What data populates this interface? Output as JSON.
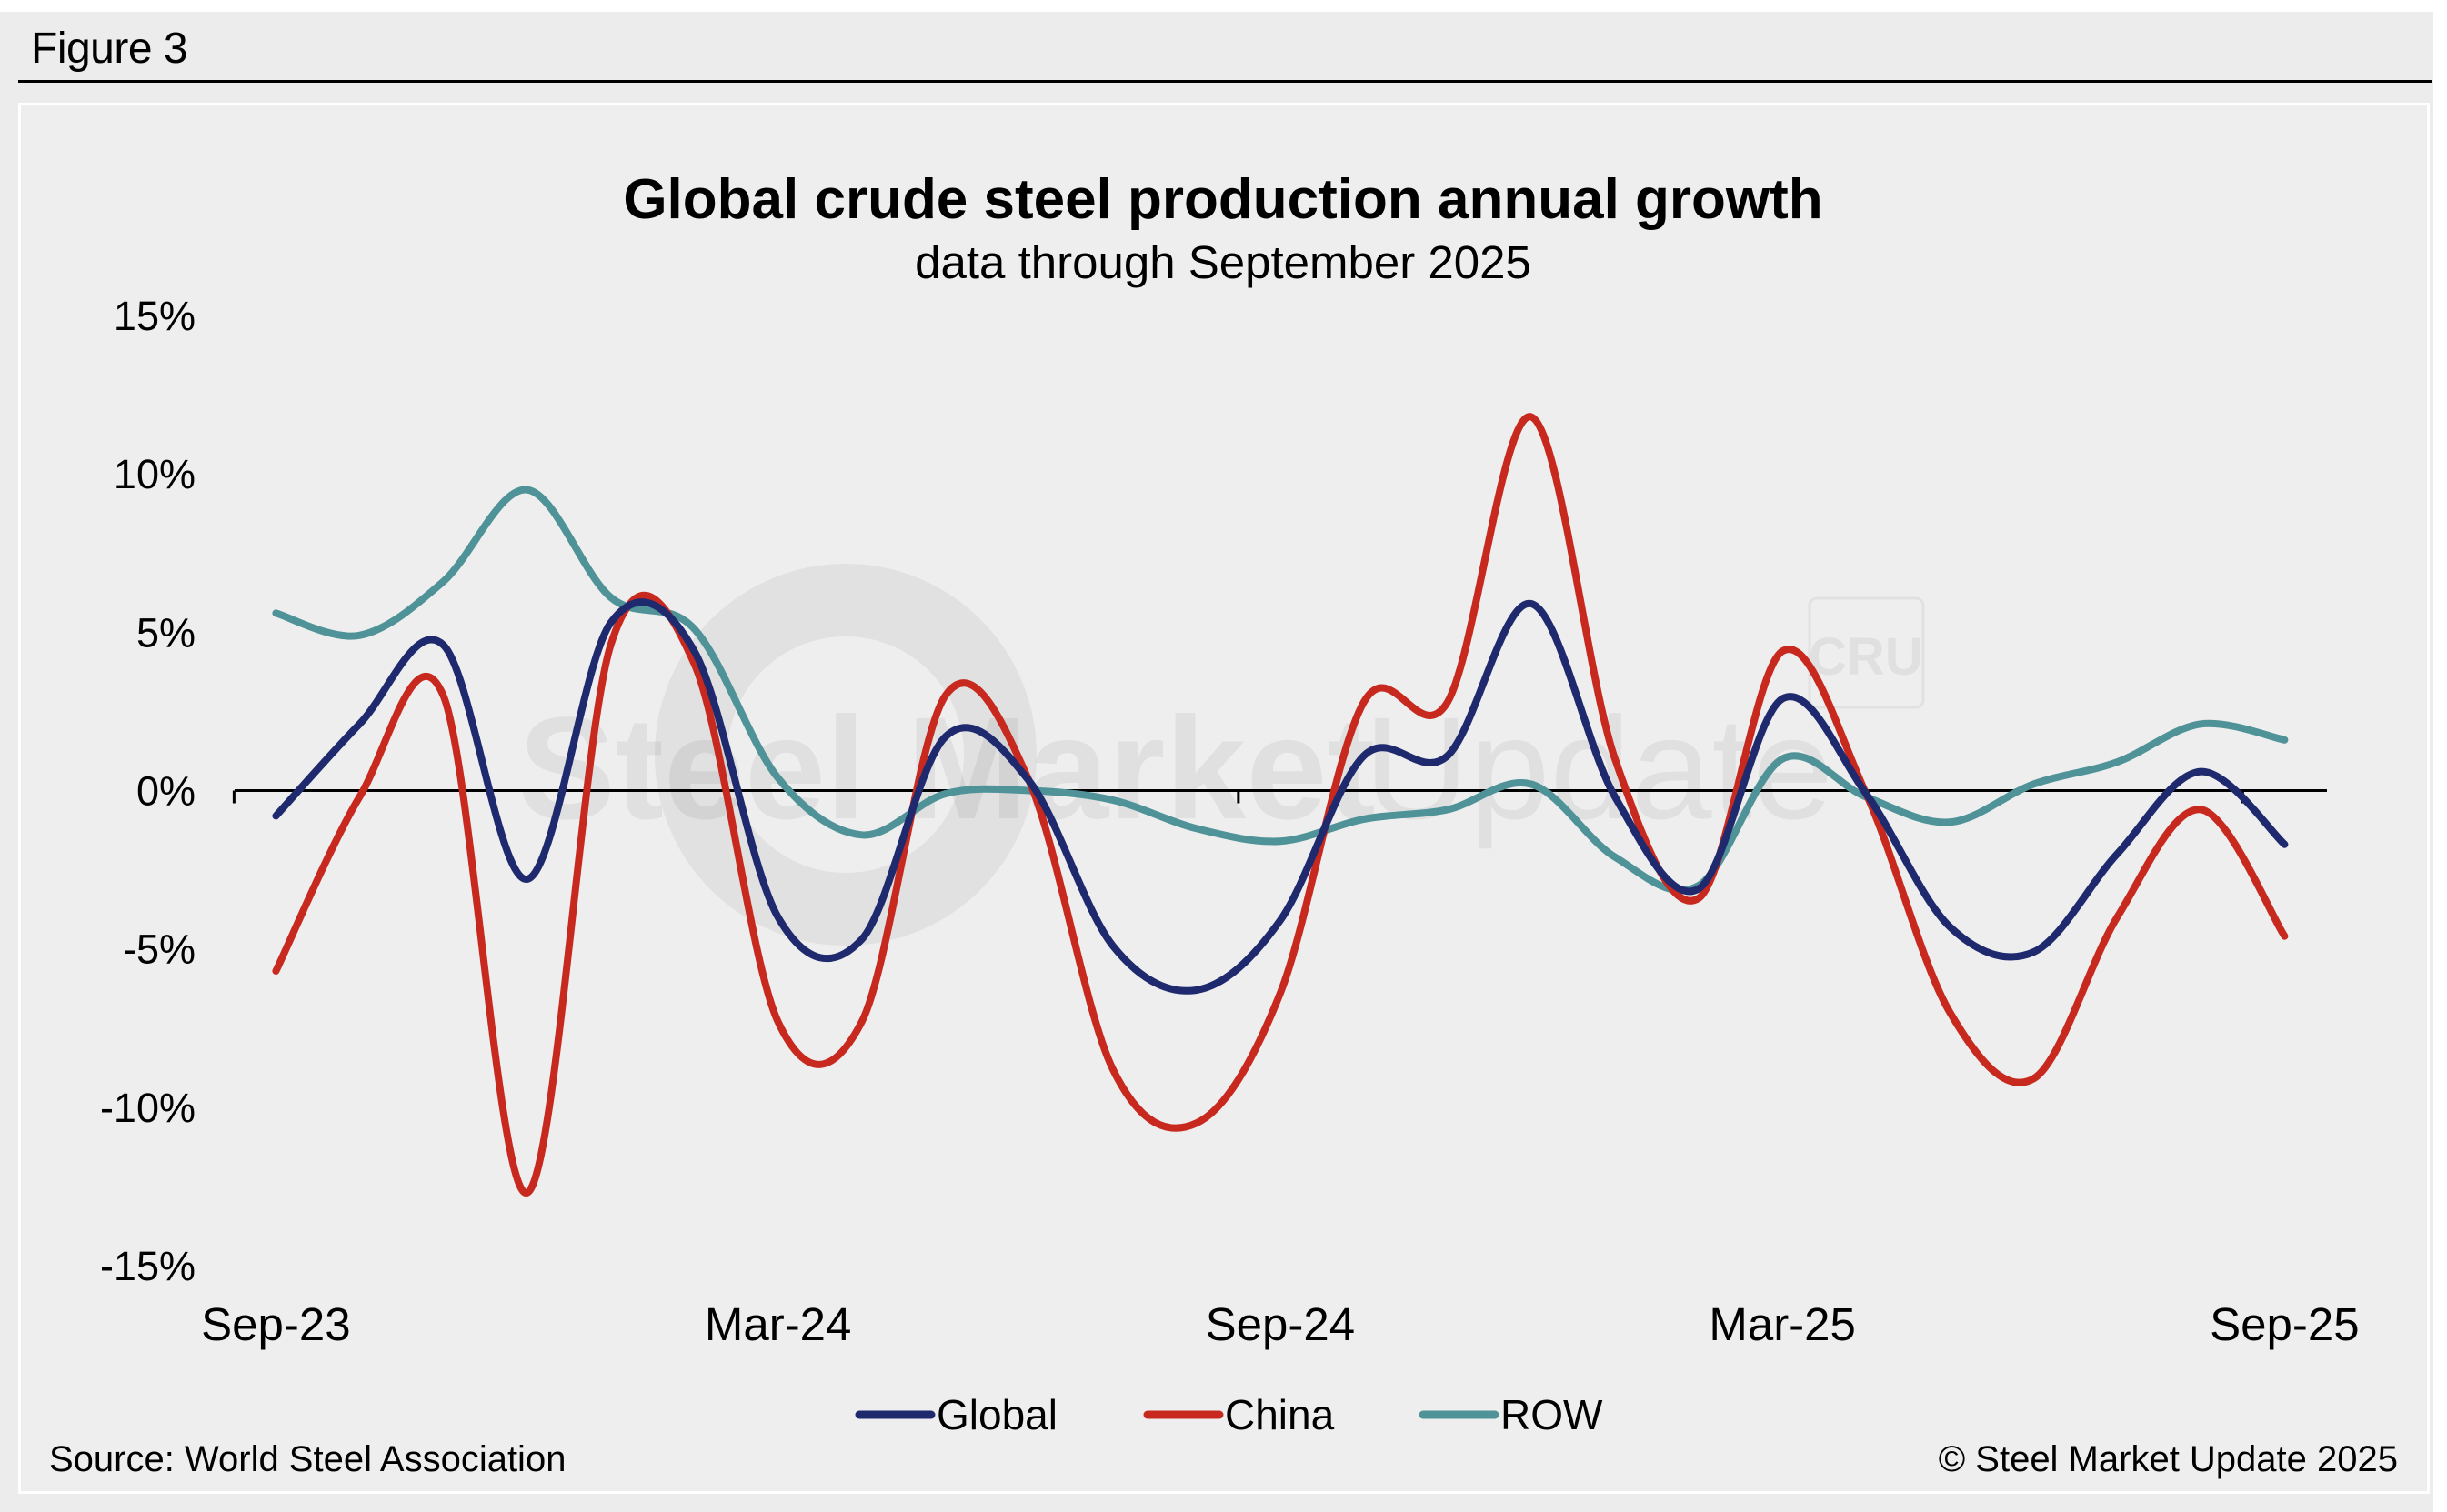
{
  "figure_label": "Figure 3",
  "footer": {
    "source": "Source: World Steel Association",
    "copyright": "© Steel Market Update 2025"
  },
  "watermarks": {
    "main_bold": "Steel Market",
    "main_light": "Update",
    "badge": "CRU"
  },
  "colors": {
    "Global": "#1f2a6e",
    "China": "#c8291f",
    "ROW": "#4f9399",
    "background": "#eeeeee",
    "zero_line": "#000000"
  },
  "chart_data": {
    "type": "line",
    "title": "Global crude steel production annual growth",
    "subtitle": "data through September 2025",
    "xlabel": "",
    "ylabel": "",
    "ylim": [
      -15,
      15
    ],
    "y_ticks": [
      15,
      10,
      5,
      0,
      -5,
      -10,
      -15
    ],
    "y_tick_labels": [
      "15%",
      "10%",
      "5%",
      "0%",
      "-5%",
      "-10%",
      "-15%"
    ],
    "x_tick_labels": [
      "Sep-23",
      "Mar-24",
      "Sep-24",
      "Mar-25",
      "Sep-25"
    ],
    "x_tick_label_indices": [
      0,
      6,
      12,
      18,
      24
    ],
    "x": [
      "Sep-23",
      "Oct-23",
      "Nov-23",
      "Dec-23",
      "Jan-24",
      "Feb-24",
      "Mar-24",
      "Apr-24",
      "May-24",
      "Jun-24",
      "Jul-24",
      "Aug-24",
      "Sep-24",
      "Oct-24",
      "Nov-24",
      "Dec-24",
      "Jan-25",
      "Feb-25",
      "Mar-25",
      "Apr-25",
      "May-25",
      "Jun-25",
      "Jul-25",
      "Aug-25",
      "Sep-25"
    ],
    "grid": false,
    "smoothed": true,
    "legend_position": "bottom-center",
    "series": [
      {
        "name": "Global",
        "values": [
          -0.8,
          2.1,
          4.6,
          -2.8,
          5.3,
          4.4,
          -4.0,
          -4.7,
          1.7,
          0.3,
          -4.9,
          -6.3,
          -4.1,
          1.1,
          1.1,
          5.9,
          -0.2,
          -3.1,
          2.9,
          -0.1,
          -4.3,
          -5.1,
          -2.0,
          0.6,
          -1.7
        ]
      },
      {
        "name": "China",
        "values": [
          -5.7,
          -0.2,
          3.0,
          -12.7,
          4.6,
          4.0,
          -7.3,
          -7.3,
          3.0,
          0.3,
          -8.8,
          -10.5,
          -6.4,
          2.8,
          2.8,
          11.8,
          1.0,
          -3.4,
          4.4,
          -0.1,
          -7.0,
          -9.1,
          -4.0,
          -0.6,
          -4.6
        ]
      },
      {
        "name": "ROW",
        "values": [
          5.6,
          4.9,
          6.6,
          9.5,
          6.1,
          5.1,
          0.4,
          -1.4,
          -0.1,
          0.0,
          -0.3,
          -1.2,
          -1.6,
          -0.9,
          -0.6,
          0.2,
          -2.1,
          -3.0,
          1.0,
          -0.2,
          -1.0,
          0.2,
          0.9,
          2.1,
          1.6
        ]
      }
    ]
  }
}
